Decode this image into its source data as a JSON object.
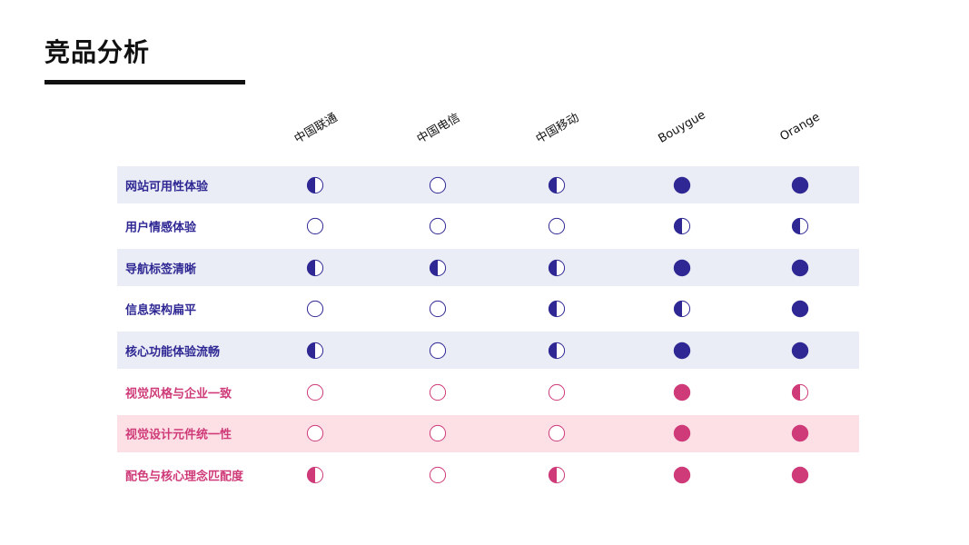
{
  "page": {
    "title": "竞品分析"
  },
  "legend_levels": {
    "0": "empty",
    "0.5": "half",
    "1": "full"
  },
  "colors": {
    "purple": "#2f2894",
    "pink": "#cf3a78",
    "row_band_purple": "#eaedf5",
    "row_band_pink": "#fde0e6"
  },
  "chart_data": {
    "type": "table",
    "title": "竞品分析",
    "columns": [
      "中国联通",
      "中国电信",
      "中国移动",
      "Bouygue",
      "Orange"
    ],
    "rows": [
      {
        "label": "网站可用性体验",
        "values": [
          0.5,
          0,
          0.5,
          1,
          1
        ],
        "color": "#2f2894",
        "band": "#eaedf5"
      },
      {
        "label": "用户情感体验",
        "values": [
          0,
          0,
          0,
          0.5,
          0.5
        ],
        "color": "#2f2894",
        "band": ""
      },
      {
        "label": "导航标签清晰",
        "values": [
          0.5,
          0.5,
          0.5,
          1,
          1
        ],
        "color": "#2f2894",
        "band": "#eaedf5"
      },
      {
        "label": "信息架构扁平",
        "values": [
          0,
          0,
          0.5,
          0.5,
          1
        ],
        "color": "#2f2894",
        "band": ""
      },
      {
        "label": "核心功能体验流畅",
        "values": [
          0.5,
          0,
          0.5,
          1,
          1
        ],
        "color": "#2f2894",
        "band": "#eaedf5"
      },
      {
        "label": "视觉风格与企业一致",
        "values": [
          0,
          0,
          0,
          1,
          0.5
        ],
        "color": "#cf3a78",
        "band": ""
      },
      {
        "label": "视觉设计元件统一性",
        "values": [
          0,
          0,
          0,
          1,
          1
        ],
        "color": "#cf3a78",
        "band": "#fde0e6"
      },
      {
        "label": "配色与核心理念匹配度",
        "values": [
          0.5,
          0,
          0.5,
          1,
          1
        ],
        "color": "#cf3a78",
        "band": ""
      }
    ]
  }
}
